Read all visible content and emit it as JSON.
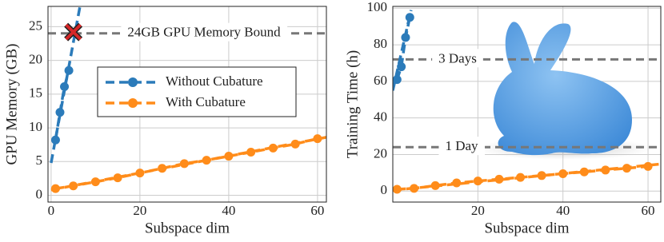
{
  "chart_data": [
    {
      "type": "line",
      "xlabel": "Subspace dim",
      "ylabel": "GPU Memory (GB)",
      "xlim": [
        -0.7,
        62
      ],
      "ylim": [
        -1,
        28
      ],
      "xticks": [
        0,
        20,
        40,
        60
      ],
      "yticks": [
        0,
        5,
        10,
        15,
        20,
        25
      ],
      "grid": true,
      "legend": "upper left",
      "series": [
        {
          "name": "Without Cubature",
          "color": "#2b7bba",
          "x": [
            1,
            2,
            3,
            4
          ],
          "values": [
            8.2,
            12.3,
            16.1,
            18.5
          ],
          "trend": {
            "x": [
              0,
              6.5
            ],
            "values": [
              4.8,
              28
            ]
          }
        },
        {
          "name": "With Cubature",
          "color": "#ff8c1a",
          "x": [
            1,
            5,
            10,
            15,
            20,
            25,
            30,
            35,
            40,
            45,
            50,
            55,
            60
          ],
          "values": [
            1.0,
            1.4,
            2.0,
            2.6,
            3.3,
            4.0,
            4.7,
            5.2,
            5.8,
            6.4,
            7.0,
            7.6,
            8.4
          ],
          "trend": {
            "x": [
              0,
              62
            ],
            "values": [
              0.8,
              8.6
            ]
          }
        }
      ],
      "marker": {
        "x": 5,
        "y": 24.2,
        "color": "#d62728"
      },
      "hlines": [
        {
          "value": 24,
          "label": "24GB GPU Memory Bound"
        }
      ]
    },
    {
      "type": "line",
      "xlabel": "Subspace dim",
      "ylabel": "Training Time (h)",
      "xlim": [
        0,
        63
      ],
      "ylim": [
        -6,
        101
      ],
      "xticks": [
        20,
        40,
        60
      ],
      "yticks": [
        0,
        20,
        40,
        60,
        80,
        100
      ],
      "grid": true,
      "legend": "none",
      "series": [
        {
          "color": "#2b7bba",
          "x": [
            1,
            2,
            3,
            4
          ],
          "values": [
            61,
            68,
            84,
            95
          ],
          "trend": {
            "x": [
              0,
              4.3
            ],
            "values": [
              55,
              99
            ]
          }
        },
        {
          "color": "#ff8c1a",
          "x": [
            1,
            5,
            10,
            15,
            20,
            25,
            30,
            35,
            40,
            45,
            50,
            55,
            60
          ],
          "values": [
            1,
            1.5,
            3,
            4.5,
            5.5,
            6.5,
            7.5,
            8.5,
            9.5,
            10.5,
            11.5,
            12.5,
            13.5
          ],
          "trend": {
            "x": [
              0,
              63
            ],
            "values": [
              0.5,
              14.8
            ]
          }
        }
      ],
      "hlines": [
        {
          "value": 72,
          "label": "3 Days"
        },
        {
          "value": 24,
          "label": "1 Day"
        }
      ]
    }
  ]
}
